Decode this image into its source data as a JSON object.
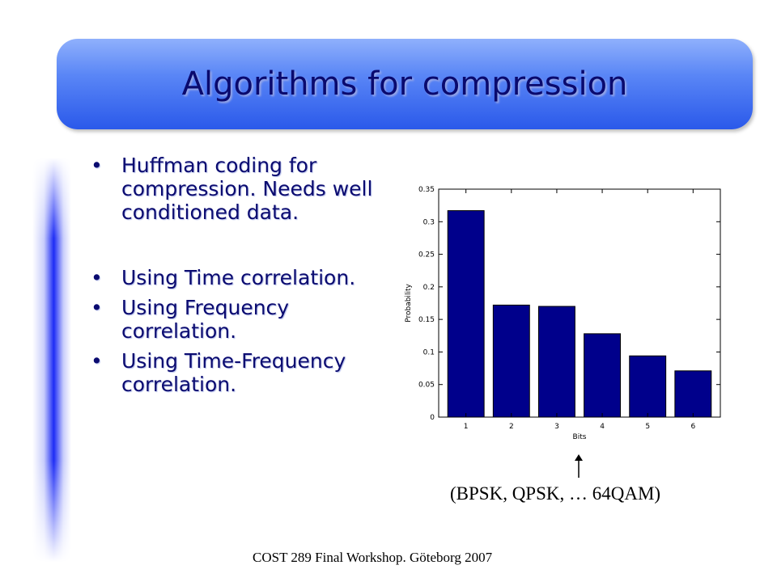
{
  "slide": {
    "title": "Algorithms for compression",
    "bullets": [
      "Huffman coding for compression. Needs well conditioned data.",
      "Using Time correlation.",
      "Using Frequency correlation.",
      "Using Time-Frequency correlation."
    ],
    "caption": "(BPSK, QPSK, … 64QAM)",
    "footer": "COST 289 Final Workshop. Göteborg 2007"
  },
  "colors": {
    "bar_fill": "#00008b",
    "banner": "#4a78f2",
    "text": "#0b0b70"
  },
  "chart_data": {
    "type": "bar",
    "categories": [
      "1",
      "2",
      "3",
      "4",
      "5",
      "6"
    ],
    "values": [
      0.317,
      0.172,
      0.17,
      0.128,
      0.094,
      0.071
    ],
    "title": "",
    "xlabel": "Bits",
    "ylabel": "Probability",
    "ylim": [
      0,
      0.35
    ],
    "yticks": [
      "0",
      "0.05",
      "0.1",
      "0.15",
      "0.2",
      "0.25",
      "0.3",
      "0.35"
    ],
    "grid": false,
    "legend": "none"
  }
}
